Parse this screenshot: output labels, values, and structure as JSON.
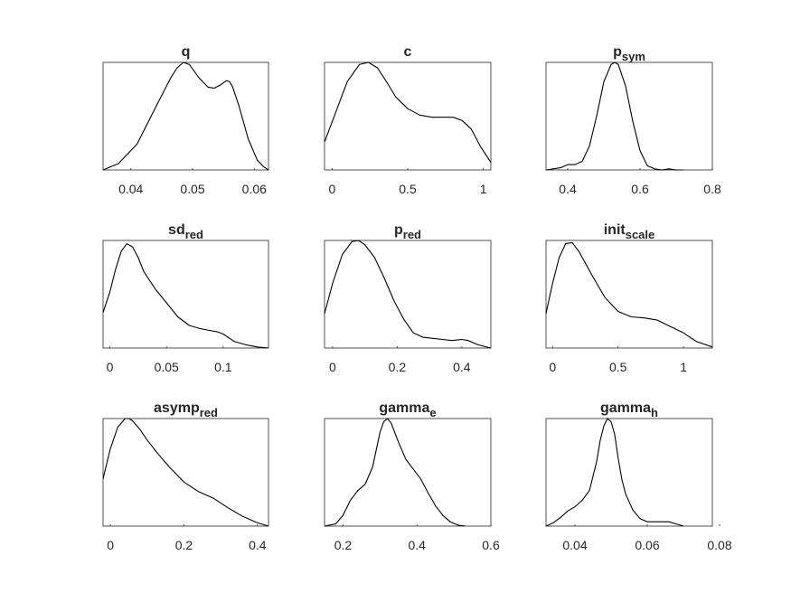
{
  "chart_data": [
    {
      "type": "line",
      "title": "q",
      "title_sub": "",
      "x_ticks": [
        "0.04",
        "0.05",
        "0.06"
      ],
      "tick_values": [
        0.04,
        0.05,
        0.06
      ],
      "xlim": [
        0.0355,
        0.0623
      ],
      "ylim": [
        0,
        1
      ],
      "x": [
        0.0355,
        0.038,
        0.041,
        0.044,
        0.0465,
        0.0475,
        0.0485,
        0.0495,
        0.051,
        0.0525,
        0.0535,
        0.0545,
        0.0555,
        0.056,
        0.0565,
        0.0575,
        0.059,
        0.0605,
        0.0615,
        0.0623
      ],
      "y": [
        0.0,
        0.06,
        0.24,
        0.58,
        0.86,
        0.95,
        1.0,
        0.98,
        0.86,
        0.77,
        0.76,
        0.79,
        0.83,
        0.82,
        0.77,
        0.6,
        0.29,
        0.09,
        0.03,
        0.0
      ]
    },
    {
      "type": "line",
      "title": "c",
      "title_sub": "",
      "x_ticks": [
        "0",
        "0.5",
        "1"
      ],
      "tick_values": [
        0,
        0.5,
        1
      ],
      "xlim": [
        -0.05,
        1.05
      ],
      "ylim": [
        0,
        1
      ],
      "x": [
        -0.05,
        0.02,
        0.1,
        0.18,
        0.24,
        0.3,
        0.36,
        0.42,
        0.5,
        0.58,
        0.66,
        0.74,
        0.8,
        0.86,
        0.92,
        0.98,
        1.05
      ],
      "y": [
        0.26,
        0.52,
        0.82,
        0.98,
        1.0,
        0.95,
        0.82,
        0.68,
        0.57,
        0.51,
        0.49,
        0.49,
        0.49,
        0.46,
        0.38,
        0.22,
        0.07
      ]
    },
    {
      "type": "line",
      "title": "p",
      "title_sub": "sym",
      "x_ticks": [
        "0.4",
        "0.6",
        "0.8"
      ],
      "tick_values": [
        0.4,
        0.6,
        0.8
      ],
      "xlim": [
        0.34,
        0.8
      ],
      "ylim": [
        0,
        1
      ],
      "x": [
        0.34,
        0.36,
        0.38,
        0.4,
        0.42,
        0.44,
        0.46,
        0.48,
        0.5,
        0.52,
        0.53,
        0.54,
        0.56,
        0.58,
        0.6,
        0.62,
        0.64,
        0.66,
        0.68,
        0.7,
        0.72
      ],
      "y": [
        0.0,
        0.01,
        0.02,
        0.05,
        0.05,
        0.08,
        0.22,
        0.5,
        0.82,
        0.98,
        1.0,
        0.98,
        0.78,
        0.45,
        0.18,
        0.04,
        0.01,
        0.0,
        0.01,
        0.0,
        0.0
      ]
    },
    {
      "type": "line",
      "title": "sd",
      "title_sub": "red",
      "x_ticks": [
        "0",
        "0.05",
        "0.1"
      ],
      "tick_values": [
        0,
        0.05,
        0.1
      ],
      "xlim": [
        -0.006,
        0.14
      ],
      "ylim": [
        0,
        1
      ],
      "x": [
        -0.006,
        0.0,
        0.005,
        0.01,
        0.015,
        0.02,
        0.025,
        0.03,
        0.04,
        0.05,
        0.06,
        0.07,
        0.08,
        0.09,
        0.095,
        0.1,
        0.11,
        0.12,
        0.13,
        0.14
      ],
      "y": [
        0.33,
        0.52,
        0.73,
        0.9,
        0.97,
        0.94,
        0.84,
        0.71,
        0.55,
        0.42,
        0.29,
        0.21,
        0.18,
        0.16,
        0.15,
        0.13,
        0.06,
        0.03,
        0.01,
        0.0
      ]
    },
    {
      "type": "line",
      "title": "p",
      "title_sub": "red",
      "x_ticks": [
        "0",
        "0.2",
        "0.4"
      ],
      "tick_values": [
        0,
        0.2,
        0.4
      ],
      "xlim": [
        -0.025,
        0.49
      ],
      "ylim": [
        0,
        1
      ],
      "x": [
        -0.025,
        0.0,
        0.03,
        0.06,
        0.08,
        0.1,
        0.13,
        0.16,
        0.19,
        0.22,
        0.25,
        0.28,
        0.31,
        0.34,
        0.37,
        0.4,
        0.42,
        0.45,
        0.49
      ],
      "y": [
        0.32,
        0.6,
        0.87,
        0.99,
        1.0,
        0.96,
        0.84,
        0.65,
        0.44,
        0.27,
        0.14,
        0.1,
        0.09,
        0.08,
        0.07,
        0.08,
        0.07,
        0.03,
        0.0
      ]
    },
    {
      "type": "line",
      "title": "init",
      "title_sub": "scale",
      "x_ticks": [
        "0",
        "0.5",
        "1"
      ],
      "tick_values": [
        0,
        0.5,
        1
      ],
      "xlim": [
        -0.05,
        1.22
      ],
      "ylim": [
        0,
        1
      ],
      "x": [
        -0.05,
        0.0,
        0.05,
        0.1,
        0.15,
        0.2,
        0.3,
        0.4,
        0.5,
        0.6,
        0.7,
        0.8,
        0.9,
        1.0,
        1.1,
        1.22
      ],
      "y": [
        0.32,
        0.6,
        0.84,
        0.97,
        0.98,
        0.9,
        0.68,
        0.47,
        0.34,
        0.29,
        0.28,
        0.26,
        0.2,
        0.14,
        0.06,
        0.01
      ]
    },
    {
      "type": "line",
      "title": "asymp",
      "title_sub": "red",
      "x_ticks": [
        "0",
        "0.2",
        "0.4"
      ],
      "tick_values": [
        0,
        0.2,
        0.4
      ],
      "xlim": [
        -0.02,
        0.43
      ],
      "ylim": [
        0,
        1
      ],
      "x": [
        -0.02,
        0.0,
        0.02,
        0.04,
        0.05,
        0.06,
        0.08,
        0.1,
        0.13,
        0.16,
        0.2,
        0.24,
        0.28,
        0.32,
        0.36,
        0.4,
        0.43
      ],
      "y": [
        0.44,
        0.72,
        0.92,
        1.0,
        1.0,
        0.98,
        0.9,
        0.8,
        0.67,
        0.55,
        0.41,
        0.32,
        0.26,
        0.17,
        0.09,
        0.03,
        0.0
      ]
    },
    {
      "type": "line",
      "title": "gamma",
      "title_sub": "e",
      "x_ticks": [
        "0.2",
        "0.4",
        "0.6"
      ],
      "tick_values": [
        0.2,
        0.4,
        0.6
      ],
      "xlim": [
        0.15,
        0.6
      ],
      "ylim": [
        0,
        1
      ],
      "x": [
        0.15,
        0.18,
        0.2,
        0.22,
        0.24,
        0.26,
        0.28,
        0.3,
        0.31,
        0.32,
        0.33,
        0.35,
        0.37,
        0.39,
        0.41,
        0.43,
        0.45,
        0.47,
        0.49,
        0.51,
        0.53
      ],
      "y": [
        0.0,
        0.02,
        0.1,
        0.24,
        0.33,
        0.39,
        0.55,
        0.87,
        0.97,
        1.0,
        0.96,
        0.78,
        0.62,
        0.53,
        0.44,
        0.31,
        0.19,
        0.1,
        0.04,
        0.01,
        0.0
      ]
    },
    {
      "type": "line",
      "title": "gamma",
      "title_sub": "h",
      "x_ticks": [
        "0.04",
        "0.06",
        "0.08"
      ],
      "tick_values": [
        0.04,
        0.06,
        0.08
      ],
      "xlim": [
        0.032,
        0.078
      ],
      "ylim": [
        0,
        1
      ],
      "x": [
        0.032,
        0.034,
        0.036,
        0.038,
        0.04,
        0.042,
        0.044,
        0.046,
        0.047,
        0.048,
        0.049,
        0.05,
        0.051,
        0.052,
        0.053,
        0.054,
        0.056,
        0.058,
        0.06,
        0.062,
        0.064,
        0.066,
        0.068,
        0.07
      ],
      "y": [
        0.0,
        0.03,
        0.08,
        0.14,
        0.18,
        0.24,
        0.33,
        0.6,
        0.8,
        0.93,
        1.0,
        0.97,
        0.85,
        0.62,
        0.43,
        0.3,
        0.15,
        0.07,
        0.04,
        0.04,
        0.04,
        0.04,
        0.02,
        0.0
      ]
    }
  ]
}
